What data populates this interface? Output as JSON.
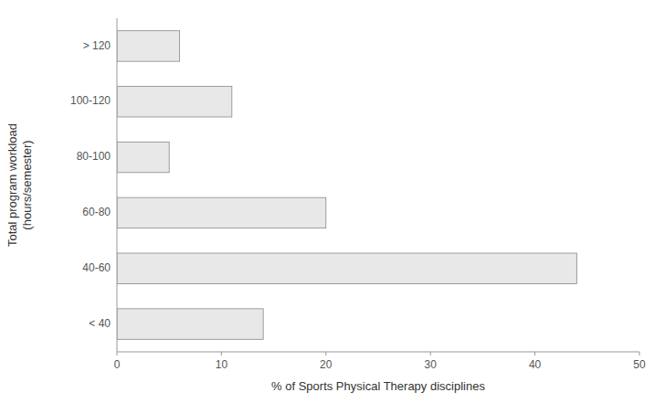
{
  "chart_data": {
    "type": "bar",
    "orientation": "horizontal",
    "categories": [
      "< 40",
      "40-60",
      "60-80",
      "80-100",
      "100-120",
      "> 120"
    ],
    "values": [
      14,
      44,
      20,
      5,
      11,
      6
    ],
    "color": "#e8e8e8",
    "xlabel": "% of Sports Physical Therapy disciplines",
    "ylabel": "Total program workload\n(hours/semester)",
    "xlim": [
      0,
      50
    ],
    "xticks": [
      0,
      10,
      20,
      30,
      40,
      50
    ],
    "grid": false
  }
}
